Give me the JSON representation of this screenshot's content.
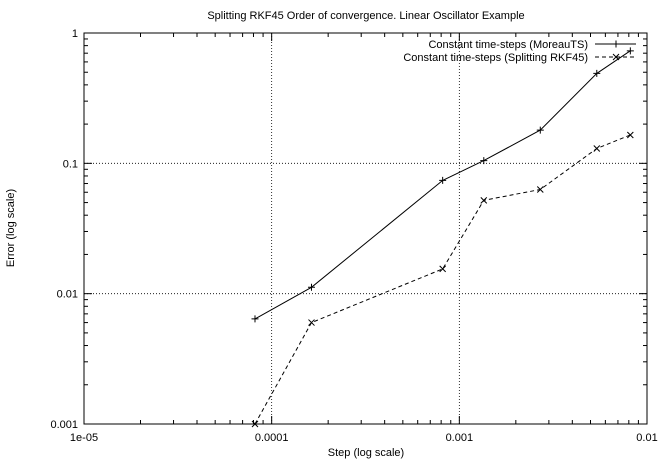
{
  "chart_data": {
    "type": "line",
    "title": "Splitting RKF45 Order of convergence. Linear Oscillator Example",
    "xlabel": "Step (log scale)",
    "ylabel": "Error (log scale)",
    "xscale": "log",
    "yscale": "log",
    "xlim": [
      1e-05,
      0.01
    ],
    "ylim": [
      0.001,
      1
    ],
    "grid": true,
    "legend_position": "top-right",
    "xticks": [
      "1e-05",
      "0.0001",
      "0.001",
      "0.01"
    ],
    "yticks": [
      "0.001",
      "0.01",
      "0.1",
      "1"
    ],
    "series": [
      {
        "name": "Constant time-steps (MoreauTS)",
        "line_style": "solid",
        "marker": "plus",
        "x": [
          8.15e-05,
          0.000163,
          0.000815,
          0.00135,
          0.0027,
          0.0054,
          0.00815
        ],
        "y": [
          0.0064,
          0.0112,
          0.074,
          0.105,
          0.18,
          0.49,
          0.73
        ]
      },
      {
        "name": "Constant time-steps (Splitting RKF45)",
        "line_style": "dashed",
        "marker": "cross",
        "x": [
          8.15e-05,
          0.000163,
          0.000815,
          0.00135,
          0.0027,
          0.0054,
          0.00815
        ],
        "y": [
          0.001,
          0.006,
          0.0155,
          0.052,
          0.063,
          0.13,
          0.165
        ]
      }
    ]
  }
}
